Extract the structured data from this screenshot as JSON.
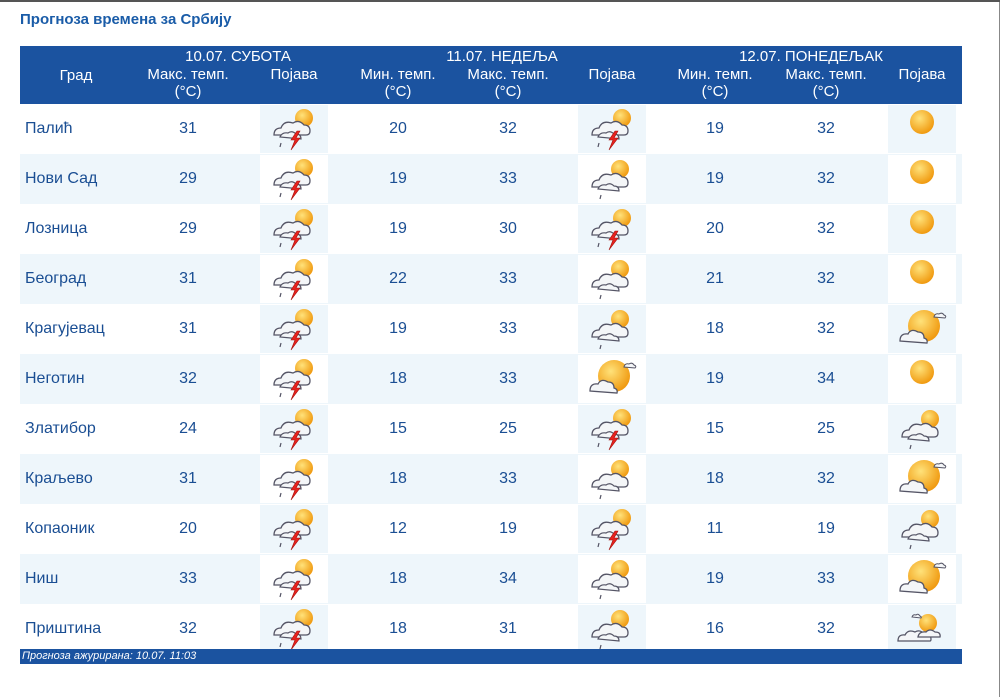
{
  "title": "Прогноза времена за Србију",
  "header": {
    "city_label": "Град",
    "days": [
      {
        "label": "10.07. СУБОТА"
      },
      {
        "label": "11.07. НЕДЕЉА"
      },
      {
        "label": "12.07. ПОНЕДЕЉАК"
      }
    ],
    "max_label_1": "Макс. темп.",
    "max_label_2": "(°C)",
    "min_label_1": "Мин. темп.",
    "min_label_2": "(°C)",
    "phen_label": "Појава"
  },
  "rows": [
    {
      "city": "Палић",
      "d1_max": "31",
      "d1_icon": "storm",
      "d2_min": "20",
      "d2_max": "32",
      "d2_icon": "storm",
      "d3_min": "19",
      "d3_max": "32",
      "d3_icon": "sun"
    },
    {
      "city": "Нови Сад",
      "d1_max": "29",
      "d1_icon": "storm",
      "d2_min": "19",
      "d2_max": "33",
      "d2_icon": "shower",
      "d3_min": "19",
      "d3_max": "32",
      "d3_icon": "sun"
    },
    {
      "city": "Лозница",
      "d1_max": "29",
      "d1_icon": "storm",
      "d2_min": "19",
      "d2_max": "30",
      "d2_icon": "storm",
      "d3_min": "20",
      "d3_max": "32",
      "d3_icon": "sun"
    },
    {
      "city": "Београд",
      "d1_max": "31",
      "d1_icon": "storm",
      "d2_min": "22",
      "d2_max": "33",
      "d2_icon": "shower",
      "d3_min": "21",
      "d3_max": "32",
      "d3_icon": "sun"
    },
    {
      "city": "Крагујевац",
      "d1_max": "31",
      "d1_icon": "storm",
      "d2_min": "19",
      "d2_max": "33",
      "d2_icon": "shower",
      "d3_min": "18",
      "d3_max": "32",
      "d3_icon": "partly"
    },
    {
      "city": "Неготин",
      "d1_max": "32",
      "d1_icon": "storm",
      "d2_min": "18",
      "d2_max": "33",
      "d2_icon": "partly",
      "d3_min": "19",
      "d3_max": "34",
      "d3_icon": "sun"
    },
    {
      "city": "Златибор",
      "d1_max": "24",
      "d1_icon": "storm",
      "d2_min": "15",
      "d2_max": "25",
      "d2_icon": "storm",
      "d3_min": "15",
      "d3_max": "25",
      "d3_icon": "shower"
    },
    {
      "city": "Краљево",
      "d1_max": "31",
      "d1_icon": "storm",
      "d2_min": "18",
      "d2_max": "33",
      "d2_icon": "shower",
      "d3_min": "18",
      "d3_max": "32",
      "d3_icon": "partly"
    },
    {
      "city": "Копаоник",
      "d1_max": "20",
      "d1_icon": "storm",
      "d2_min": "12",
      "d2_max": "19",
      "d2_icon": "storm",
      "d3_min": "11",
      "d3_max": "19",
      "d3_icon": "shower"
    },
    {
      "city": "Ниш",
      "d1_max": "33",
      "d1_icon": "storm",
      "d2_min": "18",
      "d2_max": "34",
      "d2_icon": "shower",
      "d3_min": "19",
      "d3_max": "33",
      "d3_icon": "partly"
    },
    {
      "city": "Приштина",
      "d1_max": "32",
      "d1_icon": "storm",
      "d2_min": "18",
      "d2_max": "31",
      "d2_icon": "shower",
      "d3_min": "16",
      "d3_max": "32",
      "d3_icon": "cloudy-sun"
    }
  ],
  "footer": "Прогноза ажурирана:  10.07. 11:03"
}
